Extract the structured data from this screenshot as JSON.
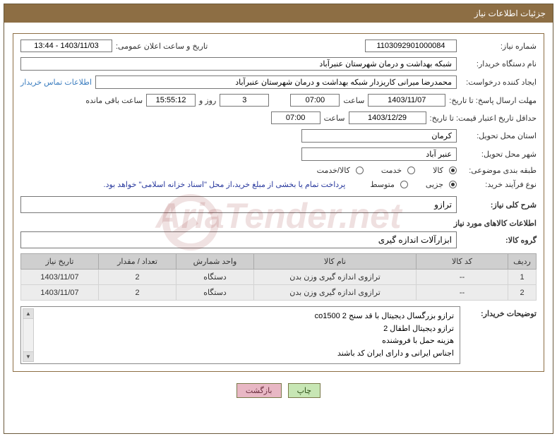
{
  "title": "جزئیات اطلاعات نیاز",
  "fields": {
    "need_no_label": "شماره نیاز:",
    "need_no": "1103092901000084",
    "announce_date_label": "تاریخ و ساعت اعلان عمومی:",
    "announce_date": "1403/11/03 - 13:44",
    "buyer_org_label": "نام دستگاه خریدار:",
    "buyer_org": "شبکه بهداشت و درمان شهرستان عنبرآباد",
    "requester_label": "ایجاد کننده درخواست:",
    "requester": "محمدرضا میرانی کاریزدار  شبکه بهداشت و درمان شهرستان عنبرآباد",
    "contact_link": "اطلاعات تماس خریدار",
    "deadline_label": "مهلت ارسال پاسخ: تا تاریخ:",
    "deadline_date": "1403/11/07",
    "time_label": "ساعت",
    "deadline_time": "07:00",
    "days": "3",
    "days_suffix": "روز و",
    "countdown": "15:55:12",
    "countdown_suffix": "ساعت باقی مانده",
    "validity_label": "حداقل تاریخ اعتبار قیمت: تا تاریخ:",
    "validity_date": "1403/12/29",
    "validity_time": "07:00",
    "province_label": "استان محل تحویل:",
    "province": "کرمان",
    "city_label": "شهر محل تحویل:",
    "city": "عنبر آباد",
    "category_label": "طبقه بندی موضوعی:",
    "cat_goods": "کالا",
    "cat_service": "خدمت",
    "cat_goods_service": "کالا/خدمت",
    "process_label": "نوع فرآیند خرید:",
    "proc_minor": "جزیی",
    "proc_medium": "متوسط",
    "payment_note": "پرداخت تمام یا بخشی از مبلغ خرید،از محل \"اسناد خزانه اسلامی\" خواهد بود.",
    "overview_label": "شرح کلی نیاز:",
    "overview": "ترازو",
    "goods_section": "اطلاعات کالاهای مورد نیاز",
    "group_label": "گروه کالا:",
    "group": "ابزارآلات اندازه گیری",
    "th_row": "ردیف",
    "th_code": "کد کالا",
    "th_name": "نام کالا",
    "th_unit": "واحد شمارش",
    "th_qty": "تعداد / مقدار",
    "th_date": "تاریخ نیاز",
    "desc_label": "توضیحات خریدار:",
    "desc_l1": "ترازو بزرگسال دیجیتال با قد سنج 2    co1500",
    "desc_l2": "ترازو دیجیتال اطفال 2",
    "desc_l3": "هزینه حمل با فروشنده",
    "desc_l4": "اجناس ایرانی و دارای ایران کد باشند",
    "btn_print": "چاپ",
    "btn_back": "بازگشت"
  },
  "table_rows": [
    {
      "idx": "1",
      "code": "--",
      "name": "ترازوی اندازه گیری وزن بدن",
      "unit": "دستگاه",
      "qty": "2",
      "date": "1403/11/07"
    },
    {
      "idx": "2",
      "code": "--",
      "name": "ترازوی اندازه گیری وزن بدن",
      "unit": "دستگاه",
      "qty": "2",
      "date": "1403/11/07"
    }
  ],
  "watermark": "AriaTender.net",
  "col_widths": {
    "row": "40px",
    "code": "130px",
    "name": "auto",
    "unit": "110px",
    "qty": "110px",
    "date": "110px"
  }
}
